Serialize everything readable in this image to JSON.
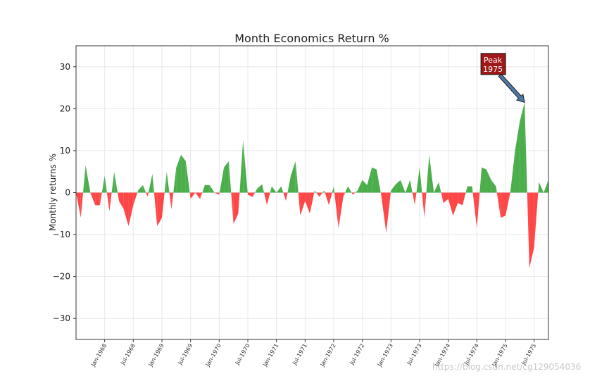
{
  "chart_data": {
    "type": "area",
    "title": "Month Economics Return %",
    "xlabel": "",
    "ylabel": "Monthly returns %",
    "ylim": [
      -35,
      35
    ],
    "yticks": [
      -30,
      -20,
      -10,
      0,
      10,
      20,
      30
    ],
    "x_tick_labels": [
      "Jan-1968",
      "Jul-1968",
      "Jan-1969",
      "Jul-1969",
      "Jan-1970",
      "Jul-1970",
      "Jan-1971",
      "Jul-1971",
      "Jan-1972",
      "Jul-1972",
      "Jan-1973",
      "Jul-1973",
      "Jan-1974",
      "Jul-1974",
      "Jan-1975",
      "Jul-1975"
    ],
    "x_start": "Jul-1967",
    "positive_color": "#2ca02c",
    "negative_color": "#ff3333",
    "grid": true,
    "annotation": {
      "text_line1": "Peak",
      "text_line2": "1975",
      "at_index": 94,
      "value": 21.5
    },
    "series": [
      {
        "values": [
          0.0,
          -6.0,
          6.5,
          0.0,
          -3.0,
          -3.0,
          4.0,
          -4.5,
          5.0,
          -2.0,
          -4.0,
          -8.0,
          -3.0,
          0.5,
          1.8,
          -1.0,
          4.5,
          -8.0,
          -6.0,
          5.0,
          -4.0,
          6.0,
          9.0,
          7.5,
          -1.5,
          0.0,
          -1.5,
          1.8,
          1.8,
          0.0,
          -0.5,
          6.0,
          7.5,
          -7.5,
          -5.0,
          12.5,
          -0.5,
          -1.0,
          1.0,
          2.0,
          -3.0,
          1.5,
          0.0,
          1.5,
          -2.0,
          4.0,
          7.5,
          -5.5,
          -2.0,
          -5.0,
          0.5,
          -1.0,
          0.5,
          -3.0,
          1.5,
          -8.5,
          -1.0,
          1.5,
          -0.5,
          0.5,
          3.0,
          1.8,
          6.0,
          5.5,
          -1.0,
          -9.5,
          0.5,
          2.0,
          3.0,
          0.0,
          3.0,
          -3.0,
          6.0,
          -6.0,
          9.0,
          0.0,
          2.5,
          -2.5,
          -1.5,
          -5.5,
          -2.5,
          -3.0,
          1.5,
          1.5,
          -8.5,
          6.0,
          5.5,
          3.0,
          1.5,
          -6.0,
          -5.5,
          0.0,
          10.0,
          17.0,
          21.5,
          -18.0,
          -13.0,
          2.5,
          0.0,
          3.0
        ]
      }
    ]
  },
  "watermark": "https://blog.csdn.net/cg129054036"
}
